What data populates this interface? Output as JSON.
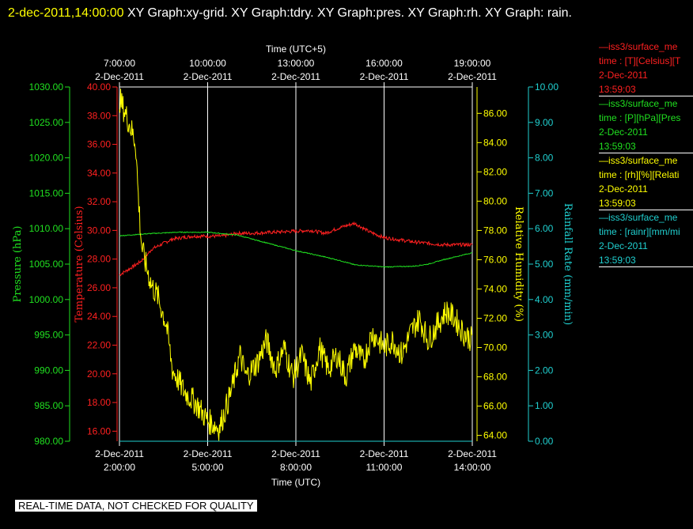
{
  "title": {
    "timestamp": "2-dec-2011,14:00:00",
    "text": "XY Graph:xy-grid.  XY Graph:tdry.  XY Graph:pres.  XY Graph:rh.  XY Graph: rain."
  },
  "banner": "REAL-TIME DATA, NOT CHECKED FOR QUALITY",
  "legend": [
    {
      "color": "#ff2020",
      "lines": [
        "—iss3/surface_me",
        "time : [T][Celsius][T",
        "2-Dec-2011",
        "13:59:03"
      ]
    },
    {
      "color": "#20e020",
      "lines": [
        "—iss3/surface_me",
        "time : [P][hPa][Pres",
        "2-Dec-2011",
        "13:59:03"
      ]
    },
    {
      "color": "#ffff00",
      "lines": [
        "—iss3/surface_me",
        "time : [rh][%][Relati",
        "2-Dec-2011",
        "13:59:03"
      ]
    },
    {
      "color": "#20d0d0",
      "lines": [
        "—iss3/surface_me",
        "time : [rainr][mm/mi",
        "2-Dec-2011",
        "13:59:03"
      ]
    }
  ],
  "colors": {
    "temperature": "#ff2020",
    "pressure": "#20e020",
    "humidity": "#ffff00",
    "rain": "#20d0d0",
    "grid": "#ffffff"
  },
  "chart_data": {
    "type": "line",
    "xlabel": "Time (UTC)",
    "x2label": "Time (UTC+5)",
    "x_range_hours_utc": [
      0,
      12
    ],
    "x_ticks_bottom": [
      [
        "2-Dec-2011",
        "2:00:00"
      ],
      [
        "2-Dec-2011",
        "5:00:00"
      ],
      [
        "2-Dec-2011",
        "8:00:00"
      ],
      [
        "2-Dec-2011",
        "11:00:00"
      ],
      [
        "2-Dec-2011",
        "14:00:00"
      ]
    ],
    "x_ticks_top": [
      [
        "7:00:00",
        "2-Dec-2011"
      ],
      [
        "10:00:00",
        "2-Dec-2011"
      ],
      [
        "13:00:00",
        "2-Dec-2011"
      ],
      [
        "16:00:00",
        "2-Dec-2011"
      ],
      [
        "19:00:00",
        "2-Dec-2011"
      ]
    ],
    "axes": {
      "pressure": {
        "label": "Pressure (hPa)",
        "ylim": [
          980,
          1030
        ],
        "ticks": [
          "980.00",
          "985.00",
          "990.00",
          "995.00",
          "1000.00",
          "1005.00",
          "1010.00",
          "1015.00",
          "1020.00",
          "1025.00",
          "1030.00"
        ]
      },
      "temperature": {
        "label": "Temperature (Celsius)",
        "ylim": [
          15.3,
          40
        ],
        "ticks": [
          "16.00",
          "18.00",
          "20.00",
          "22.00",
          "24.00",
          "26.00",
          "28.00",
          "30.00",
          "32.00",
          "34.00",
          "36.00",
          "38.00",
          "40.00"
        ]
      },
      "humidity": {
        "label": "Relative Humidity (%)",
        "ylim": [
          63.6,
          87.8
        ],
        "ticks": [
          "64.00",
          "66.00",
          "68.00",
          "70.00",
          "72.00",
          "74.00",
          "76.00",
          "78.00",
          "80.00",
          "82.00",
          "84.00",
          "86.00"
        ]
      },
      "rain": {
        "label": "Rainfall Rate (mm/min)",
        "ylim": [
          0,
          10
        ],
        "ticks": [
          "0.00",
          "1.00",
          "2.00",
          "3.00",
          "4.00",
          "5.00",
          "6.00",
          "7.00",
          "8.00",
          "9.00",
          "10.00"
        ]
      }
    },
    "series": [
      {
        "key": "temperature",
        "x": [
          0,
          0.4,
          0.7,
          0.9,
          1.1,
          1.4,
          1.8,
          2.5,
          3.5,
          4.0,
          4.5,
          5.5,
          6.5,
          7.0,
          7.5,
          8.0,
          8.5,
          9.0,
          10.0,
          11.0,
          12.0
        ],
        "values": [
          26.9,
          27.4,
          27.8,
          28.2,
          28.7,
          29.0,
          29.4,
          29.6,
          29.6,
          29.8,
          29.8,
          29.9,
          30.0,
          29.8,
          30.2,
          30.5,
          29.9,
          29.5,
          29.2,
          29.0,
          29.0
        ]
      },
      {
        "key": "pressure",
        "x": [
          0,
          1,
          2,
          3,
          4,
          5,
          6,
          7,
          7.5,
          8,
          9,
          10,
          10.5,
          11,
          12
        ],
        "values": [
          1009.0,
          1009.3,
          1009.5,
          1009.5,
          1009.1,
          1008.0,
          1006.9,
          1006.0,
          1005.5,
          1004.9,
          1004.6,
          1004.7,
          1005.0,
          1005.6,
          1006.6
        ]
      },
      {
        "key": "humidity",
        "x": [
          0,
          0.3,
          0.55,
          0.65,
          0.75,
          0.85,
          0.95,
          1.1,
          1.3,
          1.6,
          1.8,
          2.2,
          2.6,
          3.0,
          3.4,
          3.8,
          4.1,
          4.3,
          4.7,
          5.0,
          5.3,
          5.6,
          5.9,
          6.2,
          6.5,
          6.8,
          7.1,
          7.4,
          7.7,
          8.0,
          8.3,
          8.6,
          9.0,
          9.3,
          9.6,
          9.9,
          10.2,
          10.5,
          10.8,
          11.1,
          11.4,
          11.7,
          12.0
        ],
        "values": [
          87.0,
          85.5,
          84.0,
          80.0,
          77.0,
          76.0,
          75.3,
          74.2,
          73.5,
          71.5,
          68.5,
          67.0,
          66.2,
          65.0,
          64.5,
          67.0,
          69.5,
          68.0,
          69.0,
          70.5,
          68.5,
          70.0,
          68.0,
          69.5,
          67.5,
          70.0,
          68.5,
          69.5,
          68.0,
          70.0,
          69.0,
          71.0,
          70.0,
          70.5,
          69.5,
          71.0,
          72.0,
          70.5,
          71.5,
          72.5,
          72.0,
          71.0,
          70.5
        ]
      },
      {
        "key": "rain",
        "x": [
          0,
          12
        ],
        "values": [
          0.0,
          0.0
        ]
      }
    ]
  }
}
